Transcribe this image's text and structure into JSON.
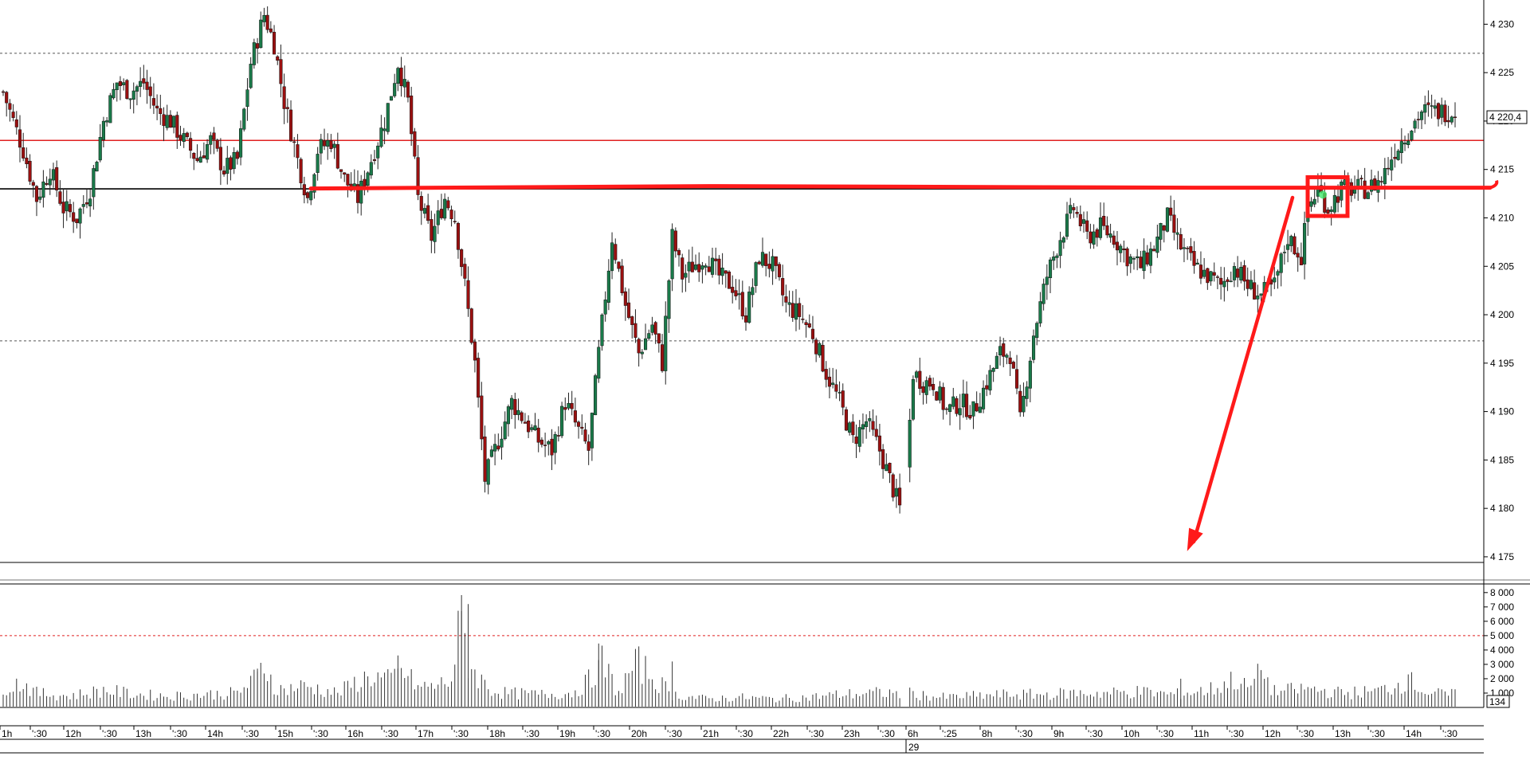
{
  "chart_data": {
    "type": "candlestick",
    "price_axis": {
      "ylim": [
        4174.5,
        4232.5
      ],
      "ticks": [
        "4 230",
        "4 225",
        "4 220",
        "4 215",
        "4 210",
        "4 205",
        "4 200",
        "4 195",
        "4 190",
        "4 185",
        "4 180",
        "4 175"
      ],
      "tick_values": [
        4230,
        4225,
        4220,
        4215,
        4210,
        4205,
        4200,
        4195,
        4190,
        4185,
        4180,
        4175
      ],
      "last_price_label": "4 220,4",
      "last_price": 4220.4
    },
    "volume_axis": {
      "ylim": [
        0,
        8600
      ],
      "ticks": [
        "8 000",
        "7 000",
        "6 000",
        "5 000",
        "4 000",
        "3 000",
        "2 000",
        "1 000"
      ],
      "tick_values": [
        8000,
        7000,
        6000,
        5000,
        4000,
        3000,
        2000,
        1000
      ],
      "last_volume_label": "134",
      "reference_level": 5000
    },
    "time_axis": {
      "labels": [
        "1h",
        "':30",
        "12h",
        "':30",
        "13h",
        "':30",
        "14h",
        "':30",
        "15h",
        "':30",
        "16h",
        "':30",
        "17h",
        "':30",
        "18h",
        "':30",
        "19h",
        "':30",
        "20h",
        "':30",
        "21h",
        "':30",
        "22h",
        "':30",
        "23h",
        "':30",
        "6h",
        "':25",
        "8h",
        "':30",
        "9h",
        "':30",
        "10h",
        "':30",
        "11h",
        "':30",
        "12h",
        "':30",
        "13h",
        "':30",
        "14h",
        "':30"
      ],
      "session_marker": "29"
    },
    "horizontal_levels": [
      {
        "price": 4227.0,
        "style": "dotted",
        "color": "#555555"
      },
      {
        "price": 4197.3,
        "style": "dotted",
        "color": "#555555"
      },
      {
        "price": 4218.0,
        "style": "solid",
        "color": "#e02020"
      },
      {
        "price": 4213.0,
        "style": "solid",
        "color": "#000000"
      }
    ],
    "annotations": {
      "support_line_price": 4213.2,
      "box_price_range": [
        4210.2,
        4214.2
      ],
      "arrow": "diagonal arrow from breakout box down to chart bottom"
    },
    "candle_anchors": [
      [
        0,
        4223
      ],
      [
        6,
        4217
      ],
      [
        10,
        4212
      ],
      [
        14,
        4215
      ],
      [
        18,
        4211
      ],
      [
        22,
        4210
      ],
      [
        26,
        4213
      ],
      [
        30,
        4220
      ],
      [
        34,
        4224
      ],
      [
        38,
        4223
      ],
      [
        42,
        4224
      ],
      [
        46,
        4221
      ],
      [
        50,
        4220
      ],
      [
        54,
        4218
      ],
      [
        58,
        4216
      ],
      [
        62,
        4218
      ],
      [
        66,
        4215
      ],
      [
        70,
        4216
      ],
      [
        74,
        4226
      ],
      [
        78,
        4231
      ],
      [
        81,
        4228
      ],
      [
        84,
        4222
      ],
      [
        88,
        4216
      ],
      [
        91,
        4212
      ],
      [
        94,
        4217
      ],
      [
        98,
        4218
      ],
      [
        102,
        4214
      ],
      [
        106,
        4212
      ],
      [
        110,
        4216
      ],
      [
        114,
        4220
      ],
      [
        118,
        4226
      ],
      [
        121,
        4222
      ],
      [
        124,
        4212
      ],
      [
        128,
        4208
      ],
      [
        132,
        4212
      ],
      [
        135,
        4210
      ],
      [
        138,
        4203
      ],
      [
        141,
        4195
      ],
      [
        144,
        4183
      ],
      [
        148,
        4187
      ],
      [
        152,
        4191
      ],
      [
        156,
        4189
      ],
      [
        160,
        4187
      ],
      [
        164,
        4186
      ],
      [
        168,
        4191
      ],
      [
        172,
        4188
      ],
      [
        175,
        4186
      ],
      [
        178,
        4196
      ],
      [
        182,
        4208
      ],
      [
        186,
        4201
      ],
      [
        190,
        4196
      ],
      [
        194,
        4199
      ],
      [
        197,
        4195
      ],
      [
        200,
        4208
      ],
      [
        203,
        4204
      ],
      [
        206,
        4205
      ],
      [
        210,
        4206
      ],
      [
        214,
        4204
      ],
      [
        218,
        4203
      ],
      [
        222,
        4200
      ],
      [
        226,
        4206
      ],
      [
        230,
        4205
      ],
      [
        234,
        4201
      ],
      [
        238,
        4200
      ],
      [
        242,
        4198
      ],
      [
        246,
        4194
      ],
      [
        250,
        4191
      ],
      [
        254,
        4187
      ],
      [
        258,
        4189
      ],
      [
        262,
        4186
      ],
      [
        266,
        4182
      ],
      [
        269,
        4179
      ],
      [
        272,
        4194
      ],
      [
        275,
        4193
      ],
      [
        278,
        4193
      ],
      [
        282,
        4190
      ],
      [
        286,
        4191
      ],
      [
        290,
        4190
      ],
      [
        294,
        4193
      ],
      [
        298,
        4196
      ],
      [
        301,
        4196
      ],
      [
        304,
        4189
      ],
      [
        308,
        4198
      ],
      [
        312,
        4204
      ],
      [
        316,
        4208
      ],
      [
        320,
        4211
      ],
      [
        324,
        4208
      ],
      [
        328,
        4209
      ],
      [
        332,
        4208
      ],
      [
        336,
        4206
      ],
      [
        340,
        4205
      ],
      [
        344,
        4207
      ],
      [
        348,
        4210
      ],
      [
        352,
        4207
      ],
      [
        356,
        4205
      ],
      [
        360,
        4204
      ],
      [
        364,
        4203
      ],
      [
        368,
        4205
      ],
      [
        372,
        4203
      ],
      [
        376,
        4202
      ],
      [
        380,
        4203
      ],
      [
        384,
        4208
      ],
      [
        388,
        4206
      ],
      [
        390,
        4211
      ],
      [
        393,
        4213
      ],
      [
        396,
        4211
      ],
      [
        400,
        4213
      ],
      [
        404,
        4213
      ],
      [
        408,
        4213
      ],
      [
        412,
        4214
      ],
      [
        416,
        4217
      ],
      [
        420,
        4219
      ],
      [
        424,
        4221
      ],
      [
        428,
        4221
      ],
      [
        432,
        4221
      ]
    ],
    "volume_anchors": [
      [
        0,
        1500
      ],
      [
        6,
        1700
      ],
      [
        10,
        1000
      ],
      [
        20,
        800
      ],
      [
        30,
        1200
      ],
      [
        40,
        900
      ],
      [
        50,
        800
      ],
      [
        60,
        900
      ],
      [
        70,
        1000
      ],
      [
        76,
        2100
      ],
      [
        78,
        3000
      ],
      [
        82,
        1200
      ],
      [
        90,
        1500
      ],
      [
        100,
        1000
      ],
      [
        106,
        1800
      ],
      [
        110,
        2200
      ],
      [
        116,
        1800
      ],
      [
        118,
        2900
      ],
      [
        124,
        1400
      ],
      [
        130,
        1500
      ],
      [
        134,
        2000
      ],
      [
        137,
        6200
      ],
      [
        139,
        3200
      ],
      [
        142,
        2100
      ],
      [
        146,
        1200
      ],
      [
        150,
        1000
      ],
      [
        160,
        900
      ],
      [
        170,
        1000
      ],
      [
        176,
        2000
      ],
      [
        178,
        3500
      ],
      [
        184,
        1000
      ],
      [
        188,
        2700
      ],
      [
        190,
        3000
      ],
      [
        200,
        900
      ],
      [
        210,
        600
      ],
      [
        220,
        700
      ],
      [
        230,
        600
      ],
      [
        240,
        700
      ],
      [
        250,
        900
      ],
      [
        260,
        1000
      ],
      [
        270,
        1000
      ],
      [
        280,
        700
      ],
      [
        290,
        800
      ],
      [
        300,
        900
      ],
      [
        310,
        900
      ],
      [
        320,
        1000
      ],
      [
        330,
        1000
      ],
      [
        340,
        1100
      ],
      [
        350,
        900
      ],
      [
        360,
        1200
      ],
      [
        364,
        1500
      ],
      [
        368,
        2000
      ],
      [
        372,
        1300
      ],
      [
        376,
        2400
      ],
      [
        380,
        1100
      ],
      [
        390,
        1300
      ],
      [
        400,
        1000
      ],
      [
        410,
        1100
      ],
      [
        416,
        1500
      ],
      [
        420,
        1900
      ],
      [
        426,
        1000
      ],
      [
        432,
        900
      ]
    ],
    "candle_count": 435
  }
}
